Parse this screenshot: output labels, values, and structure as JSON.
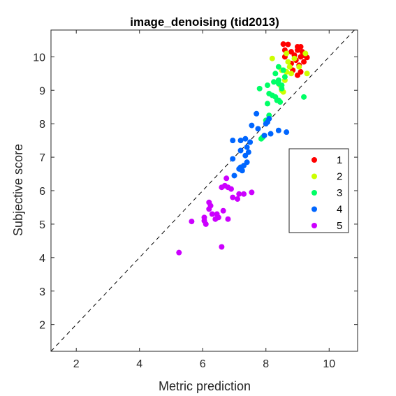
{
  "chart_data": {
    "type": "scatter",
    "title": "image_denoising (tid2013)",
    "xlabel": "Metric prediction",
    "ylabel": "Subjective score",
    "xlim": [
      1.2,
      10.9
    ],
    "ylim": [
      1.2,
      10.8
    ],
    "xticks": [
      2,
      4,
      6,
      8,
      10
    ],
    "yticks": [
      2,
      3,
      4,
      5,
      6,
      7,
      8,
      9,
      10
    ],
    "diagonal_reference": true,
    "grid": false,
    "legend_position": "right",
    "series": [
      {
        "name": "1",
        "color": "#ff0000",
        "points": [
          [
            8.55,
            10.38
          ],
          [
            8.7,
            10.37
          ],
          [
            9.0,
            10.3
          ],
          [
            9.1,
            10.3
          ],
          [
            8.6,
            10.2
          ],
          [
            9.0,
            10.2
          ],
          [
            8.8,
            10.15
          ],
          [
            9.15,
            10.15
          ],
          [
            8.9,
            10.05
          ],
          [
            9.2,
            10.05
          ],
          [
            8.6,
            10.0
          ],
          [
            9.1,
            10.0
          ],
          [
            9.3,
            9.98
          ],
          [
            8.95,
            9.9
          ],
          [
            9.2,
            9.85
          ],
          [
            8.8,
            9.8
          ],
          [
            9.05,
            9.75
          ],
          [
            8.85,
            9.6
          ],
          [
            9.1,
            9.55
          ],
          [
            9.0,
            9.45
          ]
        ]
      },
      {
        "name": "2",
        "color": "#ccff00",
        "points": [
          [
            8.2,
            9.95
          ],
          [
            8.65,
            10.1
          ],
          [
            9.25,
            10.1
          ],
          [
            8.9,
            9.95
          ],
          [
            8.7,
            9.85
          ],
          [
            8.75,
            9.7
          ],
          [
            9.05,
            9.7
          ],
          [
            8.5,
            9.6
          ],
          [
            8.65,
            9.55
          ],
          [
            9.3,
            9.5
          ],
          [
            8.8,
            9.5
          ],
          [
            8.6,
            9.3
          ],
          [
            8.45,
            9.15
          ],
          [
            8.5,
            9.0
          ],
          [
            8.55,
            8.95
          ]
        ]
      },
      {
        "name": "3",
        "color": "#00ff66",
        "points": [
          [
            8.4,
            9.7
          ],
          [
            8.55,
            9.6
          ],
          [
            8.3,
            9.5
          ],
          [
            8.6,
            9.4
          ],
          [
            8.4,
            9.3
          ],
          [
            8.25,
            9.25
          ],
          [
            8.4,
            9.2
          ],
          [
            8.05,
            9.15
          ],
          [
            8.5,
            9.15
          ],
          [
            7.8,
            9.05
          ],
          [
            8.5,
            9.05
          ],
          [
            8.1,
            8.9
          ],
          [
            8.2,
            8.85
          ],
          [
            8.3,
            8.8
          ],
          [
            9.2,
            8.8
          ],
          [
            8.35,
            8.7
          ],
          [
            8.4,
            8.7
          ],
          [
            8.05,
            8.6
          ],
          [
            8.45,
            8.65
          ],
          [
            8.1,
            8.25
          ],
          [
            8.0,
            8.1
          ],
          [
            7.9,
            7.6
          ],
          [
            7.85,
            7.55
          ]
        ]
      },
      {
        "name": "4",
        "color": "#0066ff",
        "points": [
          [
            7.7,
            8.3
          ],
          [
            8.1,
            8.15
          ],
          [
            8.05,
            8.05
          ],
          [
            8.0,
            8.0
          ],
          [
            7.55,
            7.95
          ],
          [
            7.75,
            7.85
          ],
          [
            8.4,
            7.8
          ],
          [
            8.65,
            7.75
          ],
          [
            8.15,
            7.7
          ],
          [
            7.95,
            7.65
          ],
          [
            6.95,
            7.5
          ],
          [
            7.2,
            7.5
          ],
          [
            7.35,
            7.55
          ],
          [
            7.5,
            7.45
          ],
          [
            7.4,
            7.3
          ],
          [
            7.2,
            7.2
          ],
          [
            7.45,
            7.15
          ],
          [
            7.35,
            7.05
          ],
          [
            6.95,
            6.95
          ],
          [
            7.4,
            6.85
          ],
          [
            7.2,
            6.7
          ],
          [
            7.25,
            6.6
          ],
          [
            7.15,
            6.65
          ],
          [
            7.3,
            6.75
          ],
          [
            7.0,
            6.45
          ]
        ]
      },
      {
        "name": "5",
        "color": "#cc00ff",
        "points": [
          [
            6.75,
            6.37
          ],
          [
            6.7,
            6.15
          ],
          [
            6.8,
            6.1
          ],
          [
            6.9,
            6.05
          ],
          [
            6.6,
            6.1
          ],
          [
            7.3,
            5.9
          ],
          [
            7.15,
            5.9
          ],
          [
            7.55,
            5.95
          ],
          [
            6.95,
            5.8
          ],
          [
            7.1,
            5.75
          ],
          [
            6.2,
            5.65
          ],
          [
            6.25,
            5.55
          ],
          [
            6.2,
            5.45
          ],
          [
            6.65,
            5.4
          ],
          [
            6.45,
            5.3
          ],
          [
            6.3,
            5.3
          ],
          [
            6.5,
            5.2
          ],
          [
            6.05,
            5.2
          ],
          [
            6.4,
            5.15
          ],
          [
            6.8,
            5.15
          ],
          [
            6.05,
            5.1
          ],
          [
            6.1,
            5.0
          ],
          [
            5.65,
            5.08
          ],
          [
            6.6,
            4.32
          ],
          [
            5.25,
            4.15
          ]
        ]
      }
    ]
  }
}
